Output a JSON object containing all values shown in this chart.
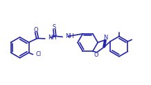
{
  "background_color": "#ffffff",
  "line_color": "#2222aa",
  "text_color": "#2222aa",
  "bond_lw": 1.2,
  "figsize": [
    2.18,
    1.23
  ],
  "dpi": 100,
  "xlim": [
    0,
    10.5
  ],
  "ylim": [
    0,
    5.8
  ]
}
